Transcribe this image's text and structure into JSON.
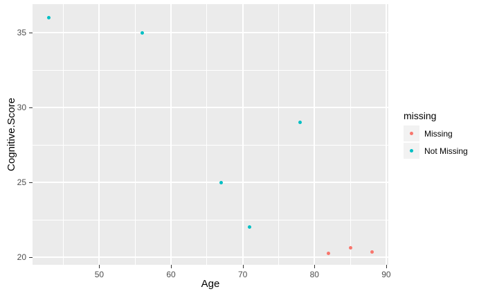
{
  "colors": {
    "panel_bg": "#EBEBEB",
    "grid": "#FFFFFF",
    "tick_mark": "#333333",
    "tick_label": "#4D4D4D",
    "axis_title": "#000000",
    "legend_key_bg": "#F2F2F2"
  },
  "chart_data": {
    "type": "scatter",
    "title": "",
    "xlabel": "Age",
    "ylabel": "Cognitive.Score",
    "xlim": [
      40.7,
      90.3
    ],
    "ylim": [
      19.5,
      36.9
    ],
    "x_ticks": [
      50,
      60,
      70,
      80,
      90
    ],
    "y_ticks": [
      20,
      25,
      30,
      35
    ],
    "x_minor_ticks": [
      45,
      55,
      65,
      75,
      85
    ],
    "y_minor_ticks": [
      22.5,
      27.5,
      32.5
    ],
    "grid": true,
    "legend_position": "right",
    "legend_title": "missing",
    "series": [
      {
        "name": "Missing",
        "color": "#F8766D",
        "points": [
          {
            "x": 82,
            "y": 20.25
          },
          {
            "x": 85,
            "y": 20.65
          },
          {
            "x": 88,
            "y": 20.35
          }
        ]
      },
      {
        "name": "Not Missing",
        "color": "#00BFC4",
        "points": [
          {
            "x": 43,
            "y": 36
          },
          {
            "x": 56,
            "y": 35
          },
          {
            "x": 67,
            "y": 25
          },
          {
            "x": 71,
            "y": 22
          },
          {
            "x": 78,
            "y": 29
          }
        ]
      }
    ]
  }
}
